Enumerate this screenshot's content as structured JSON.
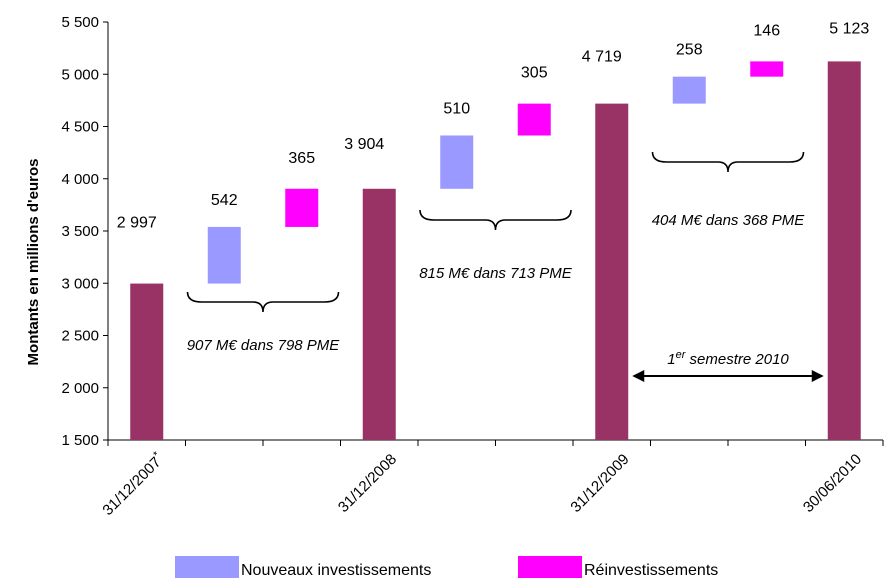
{
  "chart_data": {
    "type": "bar",
    "subtype": "waterfall",
    "ylabel": "Montants en millions d'euros",
    "ylim": [
      1500,
      5500
    ],
    "yticks": [
      1500,
      2000,
      2500,
      3000,
      3500,
      4000,
      4500,
      5000,
      5500
    ],
    "ytick_labels": [
      "1 500",
      "2 000",
      "2 500",
      "3 000",
      "3 500",
      "4 000",
      "4 500",
      "5 000",
      "5 500"
    ],
    "x_labels": [
      "31/12/2007",
      "31/12/2008",
      "31/12/2009",
      "30/06/2010"
    ],
    "x_label_footnote": "*",
    "colors": {
      "total": "#993366",
      "new": "#9999ff",
      "reinvest": "#ff00ff"
    },
    "bars": [
      {
        "kind": "total",
        "slot": 0,
        "base": 1500,
        "top": 2997,
        "label": "2 997"
      },
      {
        "kind": "new",
        "slot": 1,
        "base": 2997,
        "top": 3539,
        "label": "542"
      },
      {
        "kind": "reinvest",
        "slot": 2,
        "base": 3539,
        "top": 3904,
        "label": "365"
      },
      {
        "kind": "total",
        "slot": 3,
        "base": 1500,
        "top": 3904,
        "label": "3 904"
      },
      {
        "kind": "new",
        "slot": 4,
        "base": 3904,
        "top": 4414,
        "label": "510"
      },
      {
        "kind": "reinvest",
        "slot": 5,
        "base": 4414,
        "top": 4719,
        "label": "305"
      },
      {
        "kind": "total",
        "slot": 6,
        "base": 1500,
        "top": 4719,
        "label": "4 719"
      },
      {
        "kind": "new",
        "slot": 7,
        "base": 4719,
        "top": 4977,
        "label": "258"
      },
      {
        "kind": "reinvest",
        "slot": 8,
        "base": 4977,
        "top": 5123,
        "label": "146"
      },
      {
        "kind": "total",
        "slot": 9,
        "base": 1500,
        "top": 5123,
        "label": "5 123"
      }
    ],
    "annotations": [
      {
        "text": "907 M€ dans 798 PME",
        "from_slot": 1,
        "to_slot": 2
      },
      {
        "text": "815 M€ dans 713 PME",
        "from_slot": 4,
        "to_slot": 5
      },
      {
        "text": "404 M€ dans 368 PME",
        "from_slot": 7,
        "to_slot": 8
      }
    ],
    "period": {
      "prefix": "1",
      "superscript": "er",
      "suffix": " semestre 2010",
      "from_slot": 6,
      "to_slot": 9
    },
    "legend": {
      "placement": "bottom",
      "entries": [
        {
          "name": "Nouveaux investissements",
          "kind": "new"
        },
        {
          "name": "Réinvestissements",
          "kind": "reinvest"
        }
      ]
    }
  }
}
